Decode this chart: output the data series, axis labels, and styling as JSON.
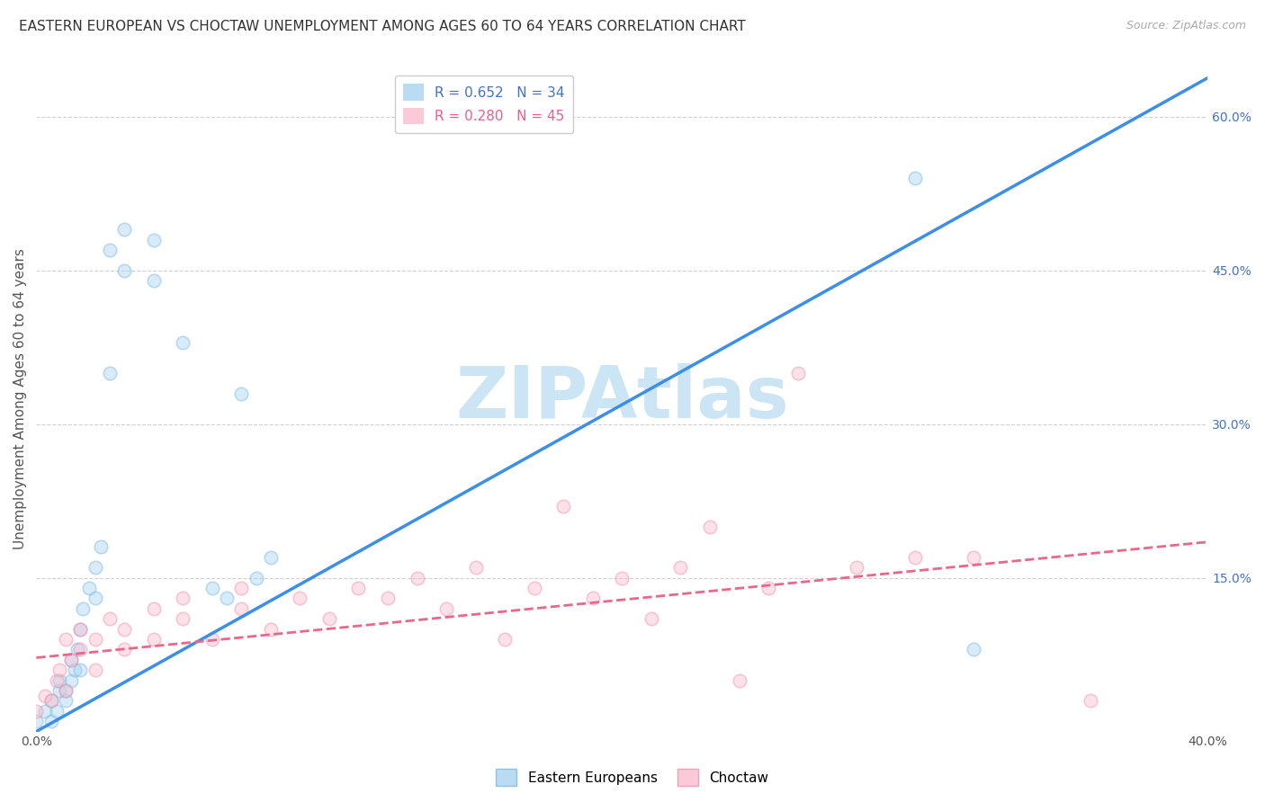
{
  "title": "EASTERN EUROPEAN VS CHOCTAW UNEMPLOYMENT AMONG AGES 60 TO 64 YEARS CORRELATION CHART",
  "source": "Source: ZipAtlas.com",
  "ylabel": "Unemployment Among Ages 60 to 64 years",
  "right_ytick_vals": [
    0.0,
    0.15,
    0.3,
    0.45,
    0.6
  ],
  "right_ytick_labels": [
    "",
    "15.0%",
    "30.0%",
    "45.0%",
    "60.0%"
  ],
  "xmin": 0.0,
  "xmax": 0.4,
  "ymin": 0.0,
  "ymax": 0.65,
  "legend_entries": [
    {
      "label": "R = 0.652   N = 34",
      "color": "#a8d4f0"
    },
    {
      "label": "R = 0.280   N = 45",
      "color": "#f9bdd0"
    }
  ],
  "watermark_text": "ZIPAtlas",
  "watermark_color": "#cce5f5",
  "eastern_europeans": {
    "x": [
      0.0,
      0.003,
      0.005,
      0.005,
      0.007,
      0.008,
      0.008,
      0.01,
      0.01,
      0.012,
      0.012,
      0.013,
      0.014,
      0.015,
      0.015,
      0.016,
      0.018,
      0.02,
      0.02,
      0.022,
      0.025,
      0.025,
      0.03,
      0.03,
      0.04,
      0.04,
      0.05,
      0.06,
      0.065,
      0.07,
      0.075,
      0.08,
      0.3,
      0.32
    ],
    "y": [
      0.01,
      0.02,
      0.01,
      0.03,
      0.02,
      0.04,
      0.05,
      0.03,
      0.04,
      0.05,
      0.07,
      0.06,
      0.08,
      0.06,
      0.1,
      0.12,
      0.14,
      0.16,
      0.13,
      0.18,
      0.35,
      0.47,
      0.49,
      0.45,
      0.44,
      0.48,
      0.38,
      0.14,
      0.13,
      0.33,
      0.15,
      0.17,
      0.54,
      0.08
    ],
    "color": "#a8d4f0",
    "edge_color": "#7ab8e0",
    "R": 0.652,
    "N": 34,
    "line_color": "#3b8eea",
    "line_style": "-"
  },
  "choctaw": {
    "x": [
      0.0,
      0.003,
      0.005,
      0.007,
      0.008,
      0.01,
      0.01,
      0.012,
      0.015,
      0.015,
      0.02,
      0.02,
      0.025,
      0.03,
      0.03,
      0.04,
      0.04,
      0.05,
      0.05,
      0.06,
      0.07,
      0.07,
      0.08,
      0.09,
      0.1,
      0.11,
      0.12,
      0.13,
      0.14,
      0.15,
      0.16,
      0.17,
      0.18,
      0.19,
      0.2,
      0.21,
      0.22,
      0.23,
      0.24,
      0.25,
      0.26,
      0.28,
      0.3,
      0.32,
      0.36
    ],
    "y": [
      0.02,
      0.035,
      0.03,
      0.05,
      0.06,
      0.04,
      0.09,
      0.07,
      0.1,
      0.08,
      0.06,
      0.09,
      0.11,
      0.08,
      0.1,
      0.09,
      0.12,
      0.11,
      0.13,
      0.09,
      0.12,
      0.14,
      0.1,
      0.13,
      0.11,
      0.14,
      0.13,
      0.15,
      0.12,
      0.16,
      0.09,
      0.14,
      0.22,
      0.13,
      0.15,
      0.11,
      0.16,
      0.2,
      0.05,
      0.14,
      0.35,
      0.16,
      0.17,
      0.17,
      0.03
    ],
    "color": "#f9bdd0",
    "edge_color": "#f090b0",
    "R": 0.28,
    "N": 45,
    "line_color": "#e8678a",
    "line_style": "--"
  },
  "ee_line": {
    "x0": 0.0,
    "y0": 0.0,
    "x1": 0.4,
    "y1": 0.638
  },
  "ch_line": {
    "x0": 0.0,
    "y0": 0.072,
    "x1": 0.4,
    "y1": 0.185
  },
  "scatter_size": 110,
  "scatter_alpha": 0.45,
  "scatter_linewidth": 1.2,
  "grid_color": "#d0d0d0",
  "grid_linestyle": "--",
  "background_color": "#ffffff",
  "title_fontsize": 11,
  "source_fontsize": 9,
  "ylabel_fontsize": 11,
  "tick_fontsize": 10,
  "legend_fontsize": 11
}
